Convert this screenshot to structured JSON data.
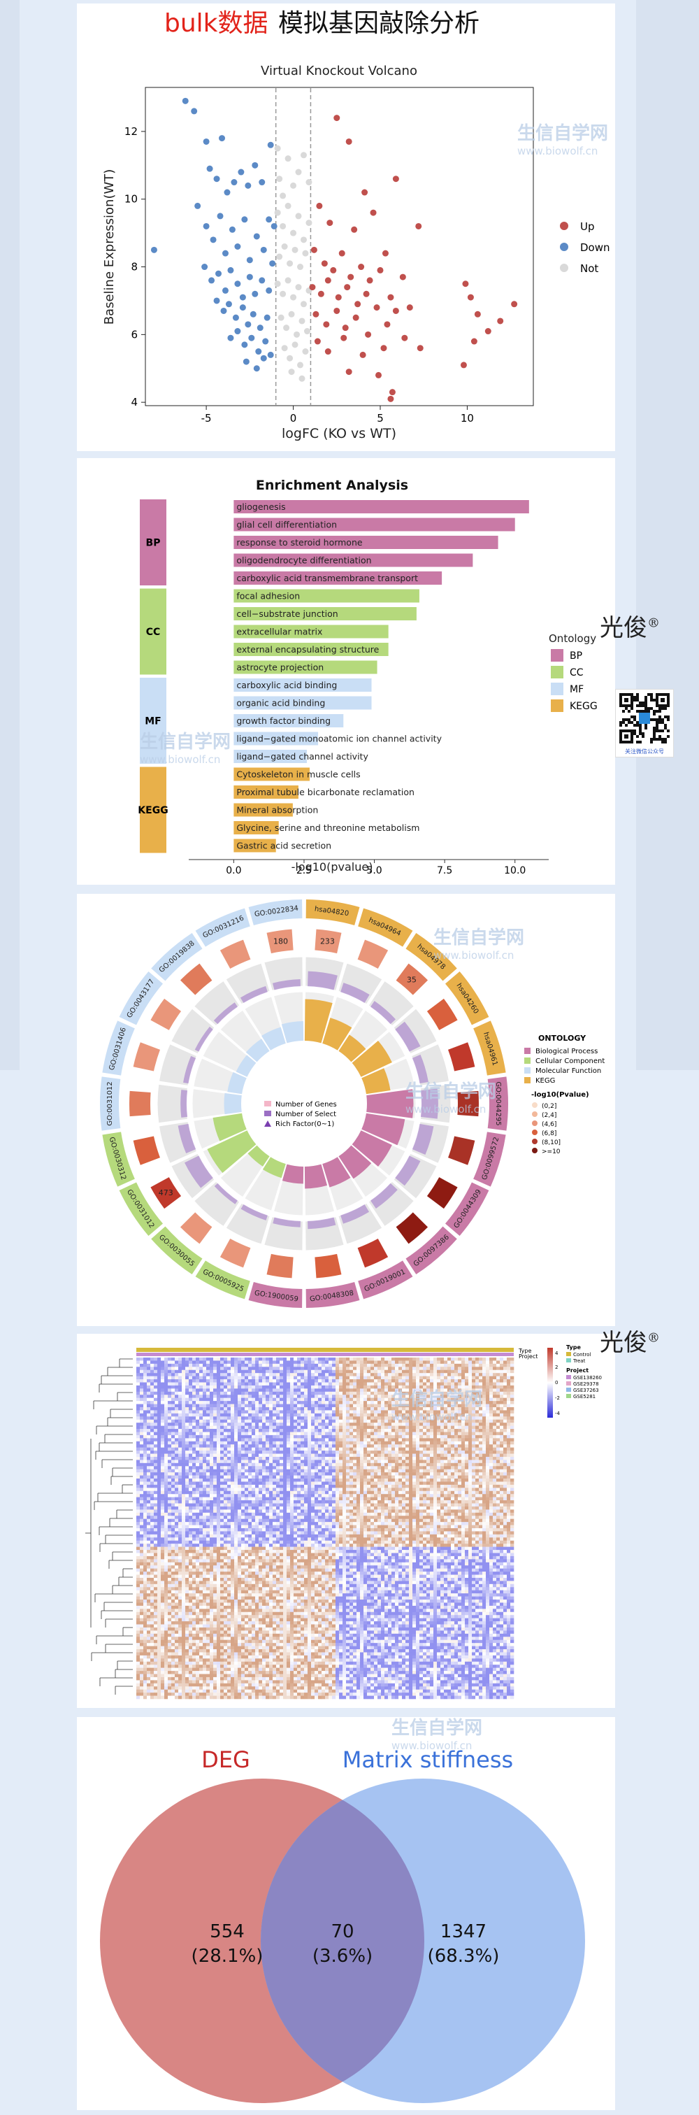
{
  "header": {
    "title_red": "bulk数据",
    "title_black": "模拟基因敲除分析"
  },
  "watermark": {
    "brand": "生信自学网",
    "url": "www.biowolf.cn"
  },
  "signature": {
    "name": "光俊",
    "mark": "®"
  },
  "qr": {
    "caption": "关注微信公众号"
  },
  "colors": {
    "up": "#c0504d",
    "down": "#5b8ac6",
    "not": "#d9d9d9",
    "bp": "#c97aa6",
    "cc": "#b5d97c",
    "mf": "#c9def5",
    "kegg": "#e8b04a",
    "deg": "#d88684",
    "matrix": "#a6c3f2",
    "overlap": "#8b86c3"
  },
  "chart_data": [
    {
      "type": "scatter",
      "title": "Virtual Knockout Volcano",
      "xlabel": "logFC (KO vs WT)",
      "ylabel": "Baseline Expression(WT)",
      "xlim": [
        -8.5,
        13.8
      ],
      "ylim": [
        3.9,
        13.3
      ],
      "xticks": [
        -5,
        0,
        5,
        10
      ],
      "yticks": [
        4,
        6,
        8,
        10,
        12
      ],
      "thresholds": [
        -1,
        1
      ],
      "legend": [
        "Up",
        "Down",
        "Not"
      ],
      "legend_position": "right",
      "series": [
        {
          "name": "Down",
          "points": [
            [
              -8,
              8.5
            ],
            [
              -6.2,
              12.9
            ],
            [
              -5.7,
              12.6
            ],
            [
              -5,
              11.7
            ],
            [
              -4.8,
              10.9
            ],
            [
              -4.4,
              10.6
            ],
            [
              -4.1,
              11.8
            ],
            [
              -3.8,
              10.2
            ],
            [
              -3.4,
              10.5
            ],
            [
              -3,
              10.8
            ],
            [
              -2.6,
              10.4
            ],
            [
              -2.2,
              11
            ],
            [
              -1.8,
              10.5
            ],
            [
              -1.3,
              11.6
            ],
            [
              -1.1,
              9.2
            ],
            [
              -5.5,
              9.8
            ],
            [
              -5,
              9.2
            ],
            [
              -4.6,
              8.8
            ],
            [
              -4.2,
              9.5
            ],
            [
              -3.9,
              8.4
            ],
            [
              -3.5,
              9.1
            ],
            [
              -3.2,
              8.6
            ],
            [
              -2.8,
              9.4
            ],
            [
              -2.5,
              8.2
            ],
            [
              -2.1,
              8.9
            ],
            [
              -1.7,
              8.5
            ],
            [
              -1.4,
              9.4
            ],
            [
              -1.2,
              8.1
            ],
            [
              -5.1,
              8
            ],
            [
              -4.7,
              7.6
            ],
            [
              -4.3,
              7.8
            ],
            [
              -3.9,
              7.3
            ],
            [
              -3.6,
              7.9
            ],
            [
              -3.2,
              7.5
            ],
            [
              -2.9,
              7.1
            ],
            [
              -2.5,
              7.7
            ],
            [
              -2.2,
              7.2
            ],
            [
              -1.8,
              7.6
            ],
            [
              -1.4,
              7.3
            ],
            [
              -4.4,
              7
            ],
            [
              -4,
              6.7
            ],
            [
              -3.7,
              6.9
            ],
            [
              -3.3,
              6.5
            ],
            [
              -2.9,
              6.8
            ],
            [
              -2.6,
              6.3
            ],
            [
              -2.3,
              6.6
            ],
            [
              -1.9,
              6.2
            ],
            [
              -1.5,
              6.5
            ],
            [
              -3.6,
              5.9
            ],
            [
              -3.2,
              6.1
            ],
            [
              -2.8,
              5.7
            ],
            [
              -2.4,
              5.9
            ],
            [
              -2,
              5.5
            ],
            [
              -1.6,
              5.8
            ],
            [
              -1.3,
              5.4
            ],
            [
              -2.7,
              5.2
            ],
            [
              -2.1,
              5
            ],
            [
              -1.7,
              5.3
            ]
          ]
        },
        {
          "name": "Not",
          "points": [
            [
              -0.9,
              11.5
            ],
            [
              -0.8,
              10.6
            ],
            [
              -0.6,
              10.1
            ],
            [
              -0.3,
              11.2
            ],
            [
              0,
              10.4
            ],
            [
              0.3,
              10.8
            ],
            [
              0.6,
              11.3
            ],
            [
              0.9,
              10.5
            ],
            [
              -0.9,
              9.6
            ],
            [
              -0.6,
              9.2
            ],
            [
              -0.3,
              9.8
            ],
            [
              0,
              9
            ],
            [
              0.3,
              9.5
            ],
            [
              0.6,
              8.8
            ],
            [
              0.9,
              9.3
            ],
            [
              -0.8,
              8.3
            ],
            [
              -0.5,
              8.6
            ],
            [
              -0.2,
              8.1
            ],
            [
              0.1,
              8.5
            ],
            [
              0.4,
              8
            ],
            [
              0.7,
              8.4
            ],
            [
              -0.9,
              7.5
            ],
            [
              -0.6,
              7.2
            ],
            [
              -0.3,
              7.6
            ],
            [
              0,
              7.1
            ],
            [
              0.3,
              7.4
            ],
            [
              0.6,
              6.9
            ],
            [
              0.9,
              7.3
            ],
            [
              -0.7,
              6.5
            ],
            [
              -0.4,
              6.2
            ],
            [
              -0.1,
              6.6
            ],
            [
              0.2,
              6
            ],
            [
              0.5,
              6.4
            ],
            [
              0.8,
              6.1
            ],
            [
              -0.5,
              5.6
            ],
            [
              -0.2,
              5.3
            ],
            [
              0.1,
              5.7
            ],
            [
              0.4,
              5.1
            ],
            [
              0.7,
              5.5
            ],
            [
              -0.1,
              4.9
            ],
            [
              0.5,
              4.7
            ]
          ]
        },
        {
          "name": "Up",
          "points": [
            [
              2.5,
              12.4
            ],
            [
              3.2,
              11.7
            ],
            [
              4.1,
              10.2
            ],
            [
              5.9,
              10.6
            ],
            [
              1.5,
              9.8
            ],
            [
              2.1,
              9.3
            ],
            [
              3.5,
              9.1
            ],
            [
              4.6,
              9.6
            ],
            [
              7.2,
              9.2
            ],
            [
              5.3,
              8.4
            ],
            [
              1.2,
              8.5
            ],
            [
              1.8,
              8.1
            ],
            [
              2.3,
              7.9
            ],
            [
              2.8,
              8.4
            ],
            [
              3.3,
              7.7
            ],
            [
              3.9,
              8
            ],
            [
              4.4,
              7.6
            ],
            [
              5,
              7.9
            ],
            [
              6.3,
              7.7
            ],
            [
              1.1,
              7.4
            ],
            [
              1.6,
              7.2
            ],
            [
              2,
              7.6
            ],
            [
              2.6,
              7.1
            ],
            [
              3.1,
              7.4
            ],
            [
              3.7,
              6.9
            ],
            [
              4.2,
              7.2
            ],
            [
              4.8,
              6.8
            ],
            [
              5.6,
              7.1
            ],
            [
              6.7,
              6.8
            ],
            [
              1.3,
              6.6
            ],
            [
              1.9,
              6.3
            ],
            [
              2.5,
              6.7
            ],
            [
              3,
              6.2
            ],
            [
              3.6,
              6.5
            ],
            [
              4.3,
              6
            ],
            [
              5.4,
              6.3
            ],
            [
              5.9,
              6.7
            ],
            [
              1.4,
              5.8
            ],
            [
              2,
              5.5
            ],
            [
              2.9,
              5.9
            ],
            [
              4,
              5.4
            ],
            [
              5.2,
              5.6
            ],
            [
              6.4,
              5.9
            ],
            [
              3.2,
              4.9
            ],
            [
              4.9,
              4.8
            ],
            [
              7.3,
              5.6
            ],
            [
              9.9,
              7.5
            ],
            [
              10.2,
              7.1
            ],
            [
              10.6,
              6.6
            ],
            [
              11.2,
              6.1
            ],
            [
              10.4,
              5.8
            ],
            [
              11.9,
              6.4
            ],
            [
              12.7,
              6.9
            ],
            [
              9.8,
              5.1
            ],
            [
              5.7,
              4.3
            ],
            [
              5.6,
              4.1
            ]
          ]
        }
      ]
    },
    {
      "type": "bar",
      "title": "Enrichment Analysis",
      "xlabel": "-log10(pvalue)",
      "xlim": [
        -1.6,
        11.2
      ],
      "xticks": [
        0.0,
        2.5,
        5.0,
        7.5,
        10.0
      ],
      "legend_title": "Ontology",
      "legend_position": "right",
      "groups": [
        "BP",
        "CC",
        "MF",
        "KEGG"
      ],
      "categories": [
        "gliogenesis",
        "glial cell differentiation",
        "response to steroid hormone",
        "oligodendrocyte differentiation",
        "carboxylic acid transmembrane transport",
        "focal adhesion",
        "cell−substrate junction",
        "extracellular matrix",
        "external encapsulating structure",
        "astrocyte projection",
        "carboxylic acid binding",
        "organic acid binding",
        "growth factor binding",
        "ligand−gated monoatomic ion channel activity",
        "ligand−gated channel activity",
        "Cytoskeleton in muscle cells",
        "Proximal tubule bicarbonate reclamation",
        "Mineral absorption",
        "Glycine, serine and threonine metabolism",
        "Gastric acid secretion"
      ],
      "category_groups": [
        "BP",
        "BP",
        "BP",
        "BP",
        "BP",
        "CC",
        "CC",
        "CC",
        "CC",
        "CC",
        "MF",
        "MF",
        "MF",
        "MF",
        "MF",
        "KEGG",
        "KEGG",
        "KEGG",
        "KEGG",
        "KEGG"
      ],
      "values": [
        10.5,
        10.0,
        9.4,
        8.5,
        7.4,
        6.6,
        6.5,
        5.5,
        5.5,
        5.1,
        4.9,
        4.9,
        3.9,
        3.0,
        2.6,
        2.7,
        2.3,
        2.1,
        1.6,
        1.5
      ]
    },
    {
      "type": "other",
      "ring_labels": [
        "hsa04820",
        "hsa04964",
        "hsa04978",
        "hsa04260",
        "hsa04961",
        "GO:0044295",
        "GO:0099572",
        "GO:0044309",
        "GO:0097386",
        "GO:0019001",
        "GO:0048308",
        "GO:1900059",
        "GO:0005925",
        "GO:0030055",
        "GO:0031012",
        "GO:0030312",
        "GO:0031012",
        "GO:0031406",
        "GO:0043177",
        "GO:0019838",
        "GO:0031216",
        "GO:0022834"
      ],
      "ring_counts": [
        "233",
        "",
        "35",
        "",
        "",
        "",
        "",
        "",
        "",
        "",
        "",
        "",
        "",
        "",
        "473",
        "",
        "",
        "",
        "",
        "",
        "",
        "180"
      ],
      "legend": {
        "title": "ONTOLOGY",
        "items": [
          "Biological Process",
          "Cellular Component",
          "Molecular Function",
          "KEGG"
        ],
        "scale_title": "-log10(Pvalue)",
        "scale_items": [
          "(0,2]",
          "(2,4]",
          "(4,6]",
          "(6,8]",
          "(8,10]",
          ">=10"
        ],
        "center_items": [
          "Number of Genes",
          "Number of Select",
          "Rich Factor(0~1)"
        ]
      }
    },
    {
      "type": "heatmap",
      "legend": {
        "type_title": "Type",
        "type_items": [
          "Control",
          "Treat"
        ],
        "project_title": "Project",
        "project_items": [
          "GSE138260",
          "GSE29378",
          "GSE37263",
          "GSE5281"
        ],
        "scale": [
          "4",
          "2",
          "0",
          "-2",
          "-4"
        ]
      },
      "annotation_labels": [
        "Type",
        "Project"
      ]
    },
    {
      "type": "other",
      "sets": [
        {
          "name": "DEG",
          "count": 554,
          "percent": "28.1%"
        },
        {
          "name": "Matrix stiffness",
          "count": 1347,
          "percent": "68.3%"
        }
      ],
      "overlap": {
        "count": 70,
        "percent": "3.6%"
      },
      "labels": {
        "deg_count": "554",
        "deg_pct": "(28.1%)",
        "both_count": "70",
        "both_pct": "(3.6%)",
        "matrix_count": "1347",
        "matrix_pct": "(68.3%)"
      }
    }
  ]
}
